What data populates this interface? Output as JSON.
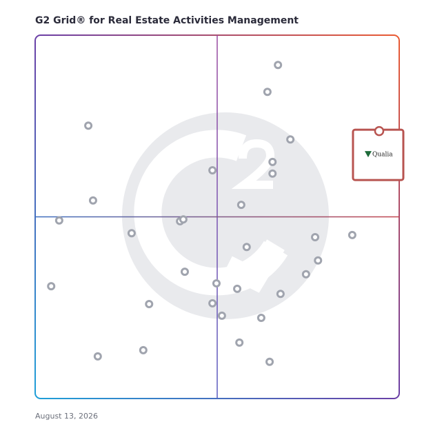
{
  "chart_data": {
    "type": "scatter",
    "title": "G2 Grid® for Real Estate Activities Management",
    "xlim": [
      0,
      100
    ],
    "ylim": [
      0,
      100
    ],
    "series": [
      {
        "color": "#a0a4ae",
        "x": [
          66.7,
          63.8,
          14.6,
          70.1,
          65.2,
          48.7,
          65.2,
          15.9,
          56.6,
          6.6,
          39.8,
          40.7,
          26.5,
          76.9,
          87.1,
          58.1,
          77.7,
          41.1,
          74.4,
          4.4,
          49.8,
          55.5,
          67.4,
          31.3,
          48.7,
          51.3,
          62.1,
          56.1,
          17.2,
          29.7,
          64.4
        ],
        "values": [
          91.8,
          84.4,
          75.1,
          71.3,
          65.1,
          62.8,
          61.9,
          54.5,
          53.3,
          49.0,
          48.8,
          49.3,
          45.5,
          44.4,
          45.0,
          41.7,
          38.0,
          34.9,
          34.2,
          30.9,
          31.7,
          30.2,
          28.8,
          26.0,
          26.2,
          22.8,
          22.2,
          15.4,
          11.6,
          13.3,
          10.1
        ]
      },
      {
        "name": "Qualia",
        "color": "#b85450",
        "x": [
          94.5
        ],
        "values": [
          73.6
        ]
      }
    ],
    "date": "August 13, 2026"
  }
}
